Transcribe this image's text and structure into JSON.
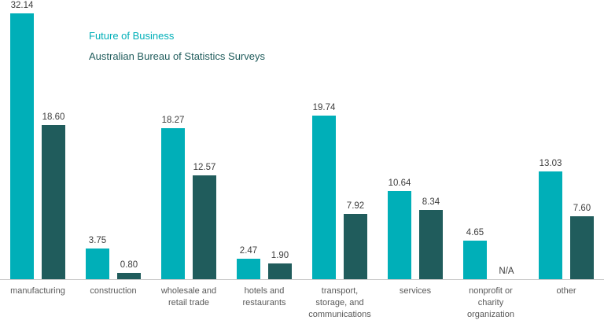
{
  "chart_data": {
    "type": "bar",
    "title": "",
    "xlabel": "",
    "ylabel": "",
    "ylim": [
      0,
      32.14
    ],
    "grid": false,
    "legend_position": "top-left",
    "na_label": "N/A",
    "axis_line_color": "#c9c9c9",
    "categories": [
      "manufacturing",
      "construction",
      "wholesale and retail trade",
      "hotels and restaurants",
      "transport, storage, and communications",
      "services",
      "nonprofit or charity organization",
      "other"
    ],
    "series": [
      {
        "name": "Future of Business",
        "color": "#00AFB8",
        "values": [
          32.14,
          3.75,
          18.27,
          2.47,
          19.74,
          10.64,
          4.65,
          13.03
        ]
      },
      {
        "name": "Australian Bureau of Statistics Surveys",
        "color": "#205C5C",
        "values": [
          18.6,
          0.8,
          12.57,
          1.9,
          7.92,
          8.34,
          null,
          7.6
        ]
      }
    ]
  }
}
